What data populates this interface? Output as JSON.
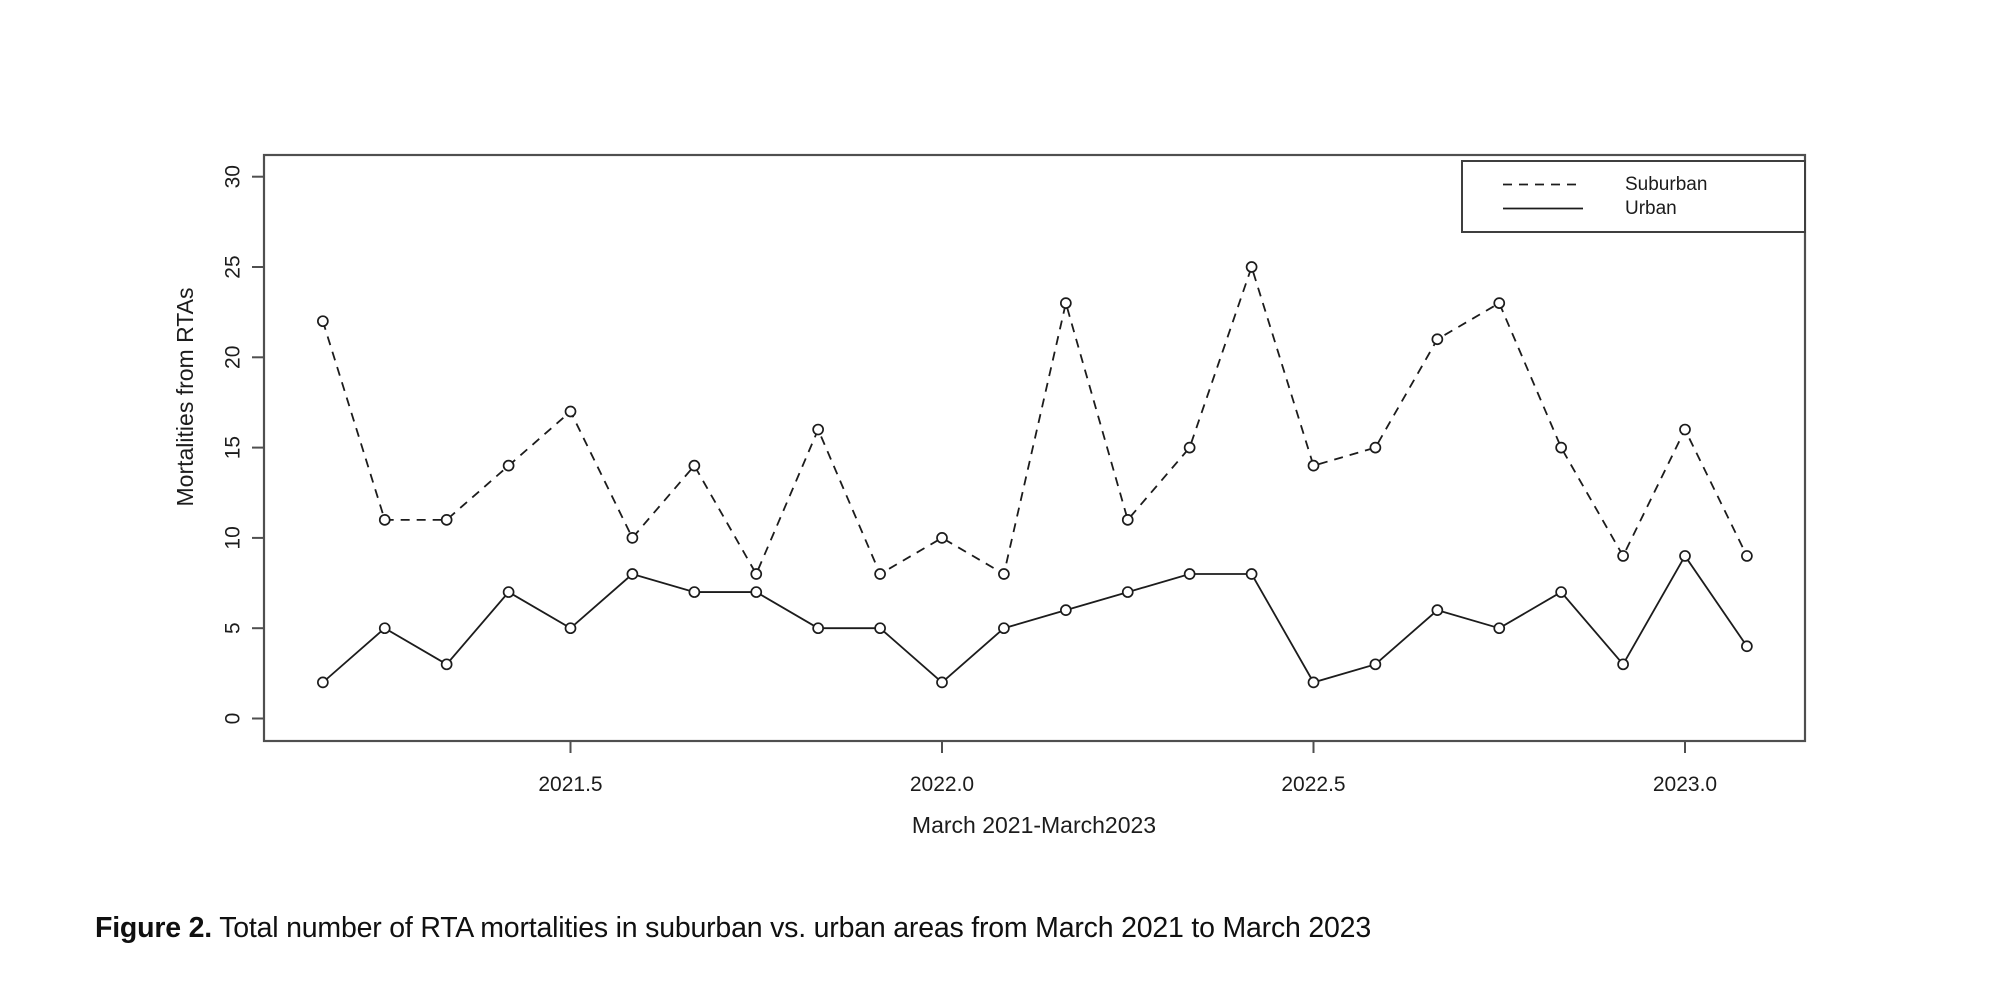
{
  "page": {
    "background": "#ffffff"
  },
  "colors": {
    "axis": "#4f4f4f",
    "data": "#1c1c1c",
    "text": "#1c1c1c",
    "panel_fill": "#ffffff"
  },
  "chart_data": {
    "type": "line",
    "title": "",
    "xlabel": "March 2021-March2023",
    "ylabel": "Mortalities from RTAs",
    "ylim": [
      0,
      30
    ],
    "y_ticks": [
      0,
      5,
      10,
      15,
      20,
      25,
      30
    ],
    "x_tick_values": [
      2021.5,
      2022.0,
      2022.5,
      2023.0
    ],
    "x_tick_labels": [
      "2021.5",
      "2022.0",
      "2022.5",
      "2023.0"
    ],
    "grid": false,
    "marker": "open-circle",
    "legend_position": "top-right",
    "x": [
      2021.1667,
      2021.25,
      2021.3333,
      2021.4167,
      2021.5,
      2021.5833,
      2021.6667,
      2021.75,
      2021.8333,
      2021.9167,
      2022.0,
      2022.0833,
      2022.1667,
      2022.25,
      2022.3333,
      2022.4167,
      2022.5,
      2022.5833,
      2022.6667,
      2022.75,
      2022.8333,
      2022.9167,
      2023.0,
      2023.0833
    ],
    "series": [
      {
        "name": "Suburban",
        "style": "dashed",
        "values": [
          22,
          11,
          11,
          14,
          17,
          10,
          14,
          8,
          16,
          8,
          10,
          8,
          23,
          11,
          15,
          25,
          14,
          15,
          21,
          23,
          15,
          9,
          16,
          9
        ]
      },
      {
        "name": "Urban",
        "style": "solid",
        "values": [
          2,
          5,
          3,
          7,
          5,
          8,
          7,
          7,
          5,
          5,
          2,
          5,
          6,
          7,
          8,
          8,
          2,
          3,
          6,
          5,
          7,
          3,
          9,
          4
        ]
      }
    ]
  },
  "figure": {
    "caption_label": "Figure 2.",
    "caption_text": " Total number of RTA mortalities in suburban vs. urban areas from March 2021 to March 2023"
  }
}
